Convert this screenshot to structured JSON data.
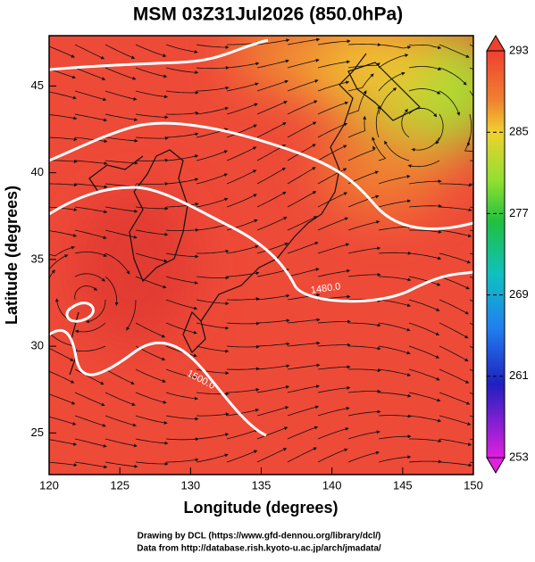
{
  "title": "MSM 03Z31Jul2026 (850.0hPa)",
  "map": {
    "xlabel": "Longitude (degrees)",
    "ylabel": "Latitude  (degrees)",
    "xlim": [
      120,
      150
    ],
    "ylim": [
      22.6,
      47.9
    ],
    "xticks": [
      120,
      125,
      130,
      135,
      140,
      145,
      150
    ],
    "yticks": [
      25,
      30,
      35,
      40,
      45
    ],
    "contour_labels": [
      "1480.0",
      "1500.0"
    ],
    "grid": true
  },
  "colorbar": {
    "clim": [
      253,
      293
    ],
    "ticks": [
      253,
      261,
      269,
      277,
      285,
      293
    ]
  },
  "footer": [
    "Drawing by DCL (https://www.gfd-dennou.org/library/dcl/)",
    "Data from http://database.rish.kyoto-u.ac.jp/arch/jmadata/"
  ]
}
